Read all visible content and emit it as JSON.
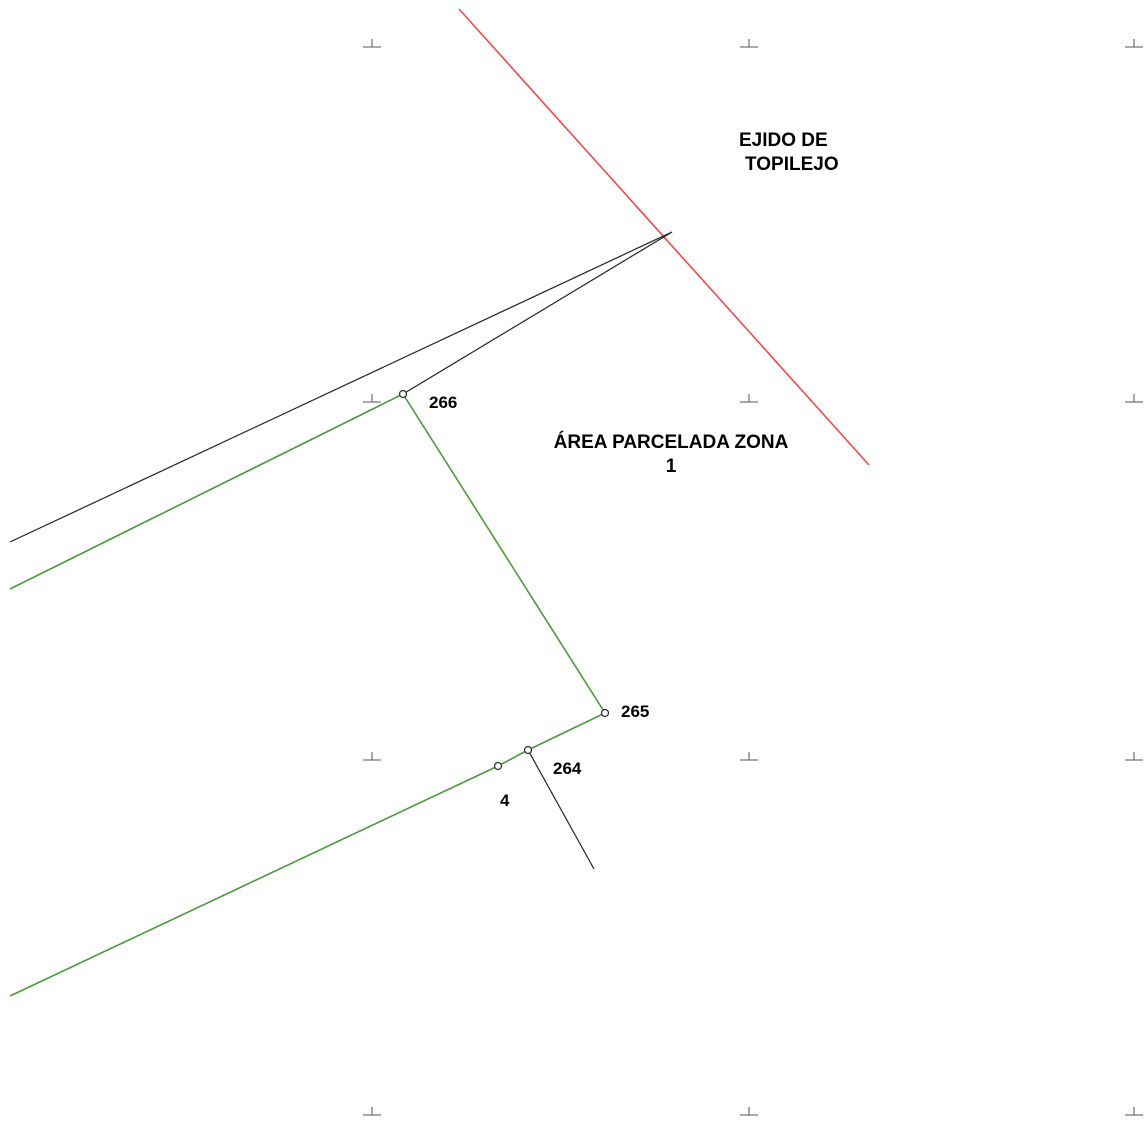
{
  "map": {
    "regions": {
      "ejido": {
        "line1": "EJIDO DE",
        "line2": "TOPILEJO"
      },
      "area": {
        "line1": "ÁREA PARCELADA ZONA",
        "line2": "1"
      }
    },
    "vertices": {
      "v266": "266",
      "v265": "265",
      "v264": "264",
      "v4": "4"
    },
    "colors": {
      "ejido_boundary": "#f04a4a",
      "parcel_boundary": "#4a9a3c",
      "reference_line": "#222222"
    }
  }
}
